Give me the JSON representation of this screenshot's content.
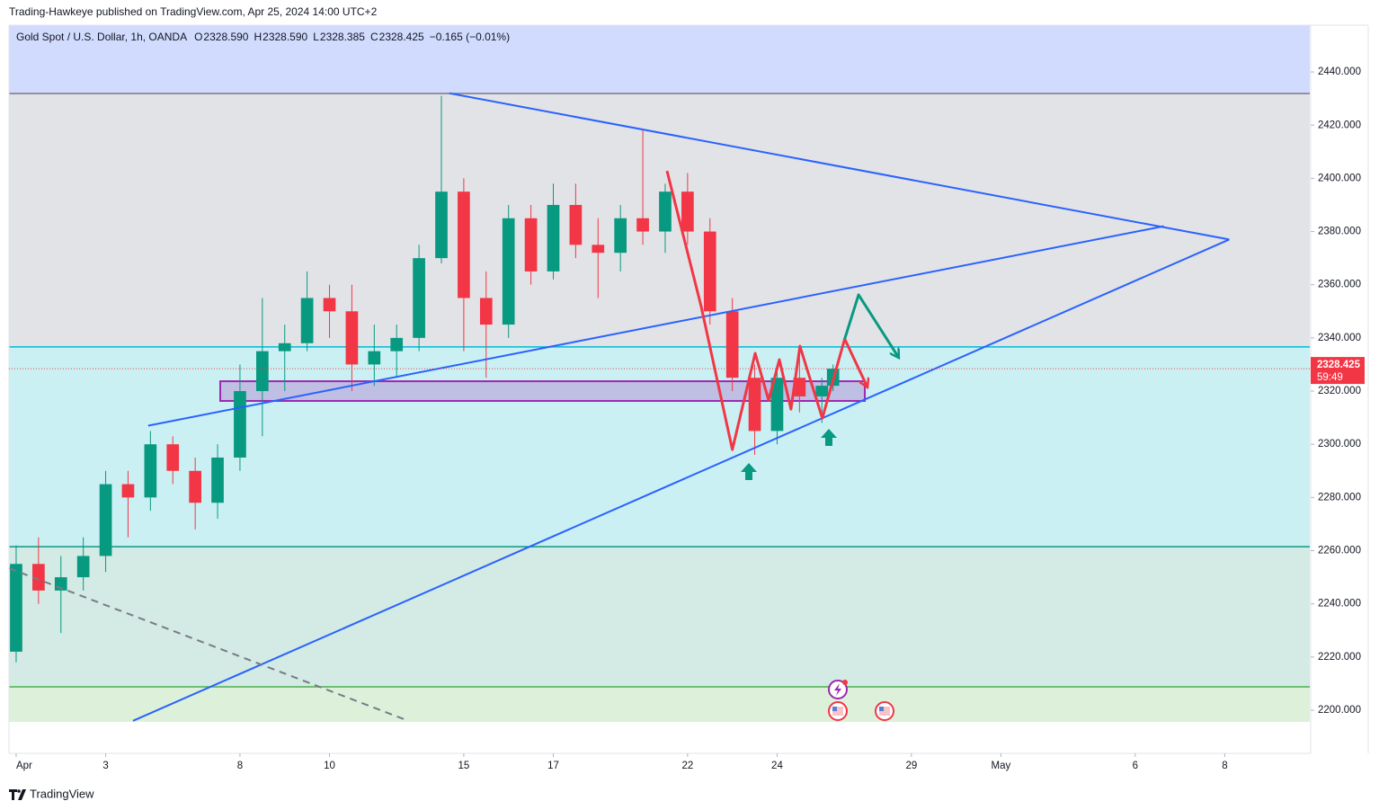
{
  "header": {
    "published": "Trading-Hawkeye published on TradingView.com, Apr 25, 2024 14:00 UTC+2"
  },
  "legend": {
    "symbol": "Gold Spot / U.S. Dollar, 1h, OANDA",
    "items": [
      {
        "key": "O",
        "value": "2328.590"
      },
      {
        "key": "H",
        "value": "2328.590"
      },
      {
        "key": "L",
        "value": "2328.385"
      },
      {
        "key": "C",
        "value": "2328.425"
      }
    ],
    "change": "−0.165 (−0.01%)"
  },
  "footer": {
    "brand": "TradingView"
  },
  "chart_data": {
    "type": "candlestick",
    "x": [
      0,
      0.5,
      1,
      1.5,
      2,
      2.5,
      3,
      3.5,
      4,
      4.5,
      5,
      5.5,
      6,
      6.5,
      7,
      7.5,
      8,
      8.5,
      9,
      9.5,
      10,
      10.5,
      11,
      11.5,
      12,
      12.5,
      13,
      13.5,
      14,
      14.5,
      15,
      15.5,
      16,
      16.5,
      17,
      17.5,
      18,
      18.25
    ],
    "open": [
      2222,
      2255,
      2245,
      2250,
      2258,
      2285,
      2280,
      2300,
      2290,
      2278,
      2295,
      2320,
      2335,
      2338,
      2355,
      2350,
      2330,
      2335,
      2340,
      2370,
      2395,
      2355,
      2345,
      2385,
      2365,
      2390,
      2375,
      2372,
      2385,
      2380,
      2395,
      2380,
      2350,
      2325,
      2305,
      2325,
      2318,
      2322
    ],
    "high": [
      2262,
      2265,
      2258,
      2265,
      2290,
      2290,
      2305,
      2303,
      2295,
      2300,
      2330,
      2355,
      2345,
      2365,
      2360,
      2360,
      2345,
      2345,
      2375,
      2431,
      2400,
      2365,
      2390,
      2390,
      2398,
      2398,
      2385,
      2390,
      2418,
      2398,
      2402,
      2385,
      2355,
      2330,
      2330,
      2335,
      2325,
      2330
    ],
    "low": [
      2218,
      2240,
      2229,
      2245,
      2252,
      2265,
      2275,
      2285,
      2268,
      2272,
      2290,
      2303,
      2320,
      2335,
      2340,
      2320,
      2322,
      2325,
      2335,
      2368,
      2335,
      2325,
      2340,
      2360,
      2362,
      2370,
      2355,
      2365,
      2375,
      2372,
      2375,
      2345,
      2320,
      2296,
      2300,
      2312,
      2308,
      2320
    ],
    "close": [
      2255,
      2245,
      2250,
      2258,
      2285,
      2280,
      2300,
      2290,
      2278,
      2295,
      2320,
      2335,
      2338,
      2355,
      2350,
      2330,
      2335,
      2340,
      2370,
      2395,
      2355,
      2345,
      2385,
      2365,
      2390,
      2375,
      2372,
      2385,
      2380,
      2395,
      2380,
      2350,
      2325,
      2305,
      2325,
      2318,
      2322,
      2328.425
    ],
    "up_color": "#089981",
    "down_color": "#f23645",
    "xlim": [
      -0.16,
      28.9
    ],
    "xticks": [
      {
        "value": 0,
        "label": "Apr"
      },
      {
        "value": 2,
        "label": "3"
      },
      {
        "value": 5,
        "label": "8"
      },
      {
        "value": 7,
        "label": "10"
      },
      {
        "value": 10,
        "label": "15"
      },
      {
        "value": 12,
        "label": "17"
      },
      {
        "value": 15,
        "label": "22"
      },
      {
        "value": 17,
        "label": "24"
      },
      {
        "value": 20,
        "label": "29"
      },
      {
        "value": 22,
        "label": "May"
      },
      {
        "value": 25,
        "label": "6"
      },
      {
        "value": 27,
        "label": "8"
      }
    ],
    "ylim": [
      2195.6,
      2457.6
    ],
    "yticks": [
      {
        "value": 2200,
        "label": "2200.000"
      },
      {
        "value": 2220,
        "label": "2220.000"
      },
      {
        "value": 2240,
        "label": "2240.000"
      },
      {
        "value": 2260,
        "label": "2260.000"
      },
      {
        "value": 2280,
        "label": "2280.000"
      },
      {
        "value": 2300,
        "label": "2300.000"
      },
      {
        "value": 2320,
        "label": "2320.000"
      },
      {
        "value": 2340,
        "label": "2340.000"
      },
      {
        "value": 2360,
        "label": "2360.000"
      },
      {
        "value": 2380,
        "label": "2380.000"
      },
      {
        "value": 2400,
        "label": "2400.000"
      },
      {
        "value": 2420,
        "label": "2420.000"
      },
      {
        "value": 2440,
        "label": "2440.000"
      }
    ],
    "bands": [
      {
        "from": 2431.9,
        "to": 2457.6,
        "color": "#d1dbfe"
      },
      {
        "from": 2336.6,
        "to": 2431.9,
        "color": "#e2e3e7"
      },
      {
        "from": 2261.5,
        "to": 2336.6,
        "color": "#cbf0f4"
      },
      {
        "from": 2208.8,
        "to": 2261.5,
        "color": "#d3ebe4"
      },
      {
        "from": 2195.6,
        "to": 2208.8,
        "color": "#ddf1da"
      }
    ],
    "levels": [
      {
        "price": 2431.9,
        "color": "#787b86"
      },
      {
        "price": 2336.6,
        "color": "#00bcd4"
      },
      {
        "price": 2261.5,
        "color": "#089981"
      },
      {
        "price": 2208.8,
        "color": "#4caf50"
      }
    ],
    "last": 2328.425,
    "countdown": "59:49",
    "last_color": "#f23645",
    "drawings": [
      {
        "kind": "line",
        "color": "#2962ff",
        "points": [
          [
            9.68,
            2432
          ],
          [
            27.1,
            2377
          ]
        ]
      },
      {
        "kind": "line",
        "color": "#2962ff",
        "points": [
          [
            2.95,
            2307
          ],
          [
            25.64,
            2382
          ]
        ]
      },
      {
        "kind": "line",
        "color": "#2962ff",
        "points": [
          [
            2.61,
            2196
          ],
          [
            27.1,
            2377
          ]
        ]
      },
      {
        "kind": "dashed",
        "color": "#787b86",
        "points": [
          [
            -0.16,
            2253.4
          ],
          [
            8.67,
            2196.6
          ]
        ]
      },
      {
        "kind": "rect",
        "color": "#9c27b0",
        "points": [
          [
            4.56,
            2323.7
          ],
          [
            18.96,
            2316.3
          ]
        ]
      },
      {
        "kind": "arrow",
        "color": "#f23645",
        "points": [
          [
            14.54,
            2402.8
          ],
          [
            15.3,
            2352.1
          ],
          [
            16.0,
            2298.0
          ],
          [
            16.51,
            2334.2
          ],
          [
            16.81,
            2316.6
          ],
          [
            17.05,
            2331.8
          ],
          [
            17.31,
            2313.2
          ],
          [
            17.51,
            2336.9
          ],
          [
            18.01,
            2309.8
          ],
          [
            18.51,
            2339.6
          ],
          [
            19.02,
            2321.4
          ]
        ]
      },
      {
        "kind": "arrow",
        "color": "#089981",
        "points": [
          [
            18.51,
            2339.6
          ],
          [
            18.82,
            2356.2
          ],
          [
            19.72,
            2332.5
          ]
        ]
      }
    ]
  }
}
